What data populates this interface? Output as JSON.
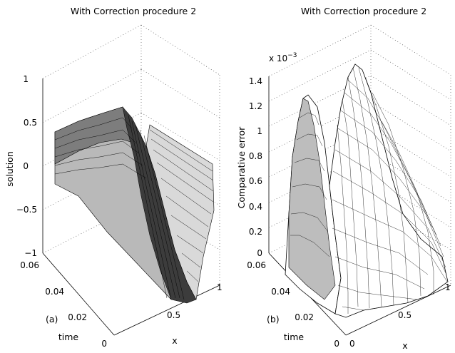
{
  "chart_data": [
    {
      "type": "surface",
      "title": "With Correction procedure 2",
      "panel_label": "(a)",
      "xlabel": "x",
      "ylabel": "time",
      "zlabel": "solution",
      "xlim": [
        0,
        1
      ],
      "ylim": [
        0,
        0.06
      ],
      "zlim": [
        -1,
        1
      ],
      "x_ticks": [
        "0",
        "0.5",
        "1"
      ],
      "y_ticks": [
        "0",
        "0.02",
        "0.04",
        "0.06"
      ],
      "z_ticks": [
        "−1",
        "−0.5",
        "0",
        "0.5",
        "1"
      ],
      "surface": "traveling shock profile: u ≈ −0.5 sin(πx) style wave, amplitude ≈ 0.6, steepening with time"
    },
    {
      "type": "surface",
      "title": "With Correction procedure 2",
      "panel_label": "(b)",
      "xlabel": "x",
      "ylabel": "time",
      "zlabel": "Comparative error",
      "z_multiplier": "x 10",
      "z_exponent": "−3",
      "xlim": [
        0,
        1
      ],
      "ylim": [
        0,
        0.06
      ],
      "zlim": [
        0,
        1.4
      ],
      "x_ticks": [
        "0",
        "0.5",
        "1"
      ],
      "y_ticks": [
        "0",
        "0.02",
        "0.04",
        "0.06"
      ],
      "z_ticks": [
        "0",
        "0.2",
        "0.4",
        "0.6",
        "0.8",
        "1",
        "1.2",
        "1.4"
      ],
      "surface": "two error ridges along time; peaks ≈ 1.2e-3 (x≈0.25) and ≈ 1.4e-3 (x≈0.6)"
    }
  ]
}
